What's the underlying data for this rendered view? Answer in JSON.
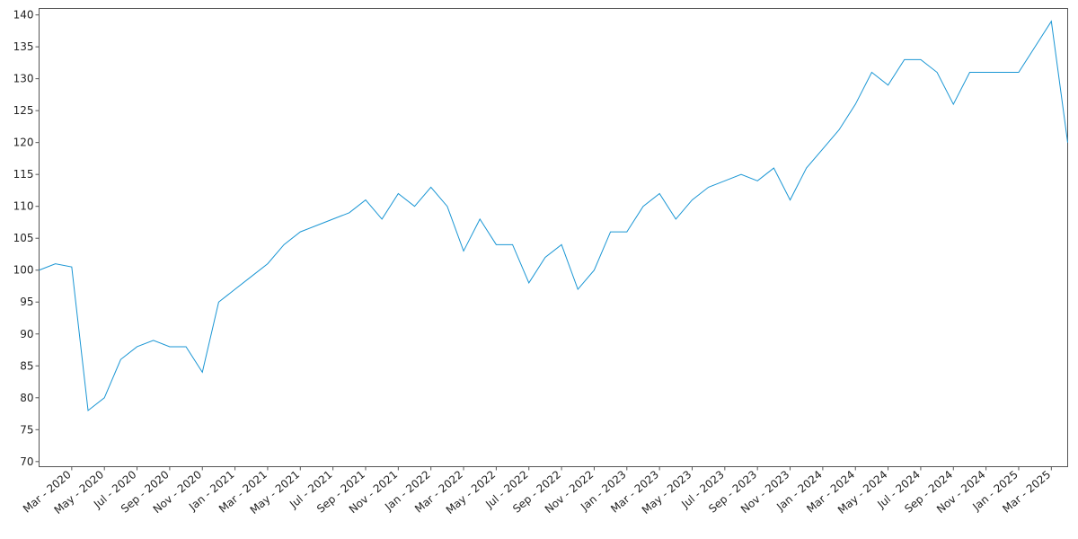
{
  "chart_data": {
    "type": "line",
    "x": [
      "2020-01",
      "2020-02",
      "2020-03",
      "2020-04",
      "2020-05",
      "2020-06",
      "2020-07",
      "2020-08",
      "2020-09",
      "2020-10",
      "2020-11",
      "2020-12",
      "2021-01",
      "2021-02",
      "2021-03",
      "2021-04",
      "2021-05",
      "2021-06",
      "2021-07",
      "2021-08",
      "2021-09",
      "2021-10",
      "2021-11",
      "2021-12",
      "2022-01",
      "2022-02",
      "2022-03",
      "2022-04",
      "2022-05",
      "2022-06",
      "2022-07",
      "2022-08",
      "2022-09",
      "2022-10",
      "2022-11",
      "2022-12",
      "2023-01",
      "2023-02",
      "2023-03",
      "2023-04",
      "2023-05",
      "2023-06",
      "2023-07",
      "2023-08",
      "2023-09",
      "2023-10",
      "2023-11",
      "2023-12",
      "2024-01",
      "2024-02",
      "2024-03",
      "2024-04",
      "2024-05",
      "2024-06",
      "2024-07",
      "2024-08",
      "2024-09",
      "2024-10",
      "2024-11",
      "2024-12",
      "2025-01",
      "2025-02",
      "2025-03",
      "2025-04"
    ],
    "series": [
      {
        "color": "#1a96d4",
        "values": [
          100,
          101,
          100.5,
          78,
          80,
          86,
          88,
          89,
          88,
          88,
          84,
          95,
          97,
          99,
          101,
          104,
          106,
          107,
          108,
          109,
          111,
          108,
          112,
          110,
          113,
          110,
          103,
          108,
          104,
          104,
          98,
          102,
          104,
          97,
          100,
          106,
          106,
          110,
          112,
          108,
          111,
          113,
          114,
          115,
          114,
          116,
          111,
          116,
          119,
          122,
          126,
          131,
          129,
          133,
          133,
          131,
          126,
          131,
          131,
          131,
          131,
          135,
          139,
          120
        ]
      }
    ],
    "xlim": [
      "2020-01",
      "2025-04"
    ],
    "xticks": [
      {
        "value": "2020-03",
        "label": "Mar - 2020"
      },
      {
        "value": "2020-05",
        "label": "May - 2020"
      },
      {
        "value": "2020-07",
        "label": "Jul - 2020"
      },
      {
        "value": "2020-09",
        "label": "Sep - 2020"
      },
      {
        "value": "2020-11",
        "label": "Nov - 2020"
      },
      {
        "value": "2021-01",
        "label": "Jan - 2021"
      },
      {
        "value": "2021-03",
        "label": "Mar - 2021"
      },
      {
        "value": "2021-05",
        "label": "May - 2021"
      },
      {
        "value": "2021-07",
        "label": "Jul - 2021"
      },
      {
        "value": "2021-09",
        "label": "Sep - 2021"
      },
      {
        "value": "2021-11",
        "label": "Nov - 2021"
      },
      {
        "value": "2022-01",
        "label": "Jan - 2022"
      },
      {
        "value": "2022-03",
        "label": "Mar - 2022"
      },
      {
        "value": "2022-05",
        "label": "May - 2022"
      },
      {
        "value": "2022-07",
        "label": "Jul - 2022"
      },
      {
        "value": "2022-09",
        "label": "Sep - 2022"
      },
      {
        "value": "2022-11",
        "label": "Nov - 2022"
      },
      {
        "value": "2023-01",
        "label": "Jan - 2023"
      },
      {
        "value": "2023-03",
        "label": "Mar - 2023"
      },
      {
        "value": "2023-05",
        "label": "May - 2023"
      },
      {
        "value": "2023-07",
        "label": "Jul - 2023"
      },
      {
        "value": "2023-09",
        "label": "Sep - 2023"
      },
      {
        "value": "2023-11",
        "label": "Nov - 2023"
      },
      {
        "value": "2024-01",
        "label": "Jan - 2024"
      },
      {
        "value": "2024-03",
        "label": "Mar - 2024"
      },
      {
        "value": "2024-05",
        "label": "May - 2024"
      },
      {
        "value": "2024-07",
        "label": "Jul - 2024"
      },
      {
        "value": "2024-09",
        "label": "Sep - 2024"
      },
      {
        "value": "2024-11",
        "label": "Nov - 2024"
      },
      {
        "value": "2025-01",
        "label": "Jan - 2025"
      },
      {
        "value": "2025-03",
        "label": "Mar - 2025"
      }
    ],
    "ylim": [
      69.2,
      141
    ],
    "yticks": [
      70,
      75,
      80,
      85,
      90,
      95,
      100,
      105,
      110,
      115,
      120,
      125,
      130,
      135,
      140
    ]
  }
}
